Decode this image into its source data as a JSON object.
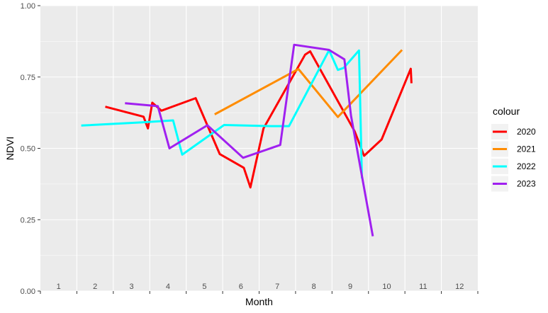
{
  "chart_data": {
    "type": "line",
    "xlabel": "Month",
    "ylabel": "NDVI",
    "ylim": [
      0,
      1
    ],
    "xlim": [
      0.5,
      12.5
    ],
    "x_ticks": [
      "1",
      "2",
      "3",
      "4",
      "5",
      "6",
      "7",
      "8",
      "9",
      "10",
      "11",
      "12"
    ],
    "y_ticks": [
      0.0,
      0.25,
      0.5,
      0.75,
      1.0
    ],
    "y_tick_labels": [
      "0.00",
      "0.25",
      "0.50",
      "0.75",
      "1.00"
    ],
    "grid": true,
    "legend": {
      "title": "colour",
      "position": "right"
    },
    "series": [
      {
        "name": "2020",
        "color": "#ff0000",
        "points": [
          [
            2.28,
            0.646
          ],
          [
            3.33,
            0.611
          ],
          [
            3.45,
            0.57
          ],
          [
            3.57,
            0.66
          ],
          [
            3.82,
            0.632
          ],
          [
            4.76,
            0.676
          ],
          [
            5.42,
            0.48
          ],
          [
            6.08,
            0.432
          ],
          [
            6.26,
            0.363
          ],
          [
            6.62,
            0.57
          ],
          [
            7.76,
            0.828
          ],
          [
            7.9,
            0.84
          ],
          [
            9.12,
            0.56
          ],
          [
            9.38,
            0.474
          ],
          [
            9.86,
            0.531
          ],
          [
            10.66,
            0.779
          ],
          [
            10.68,
            0.728
          ]
        ]
      },
      {
        "name": "2021",
        "color": "#ff8c00",
        "points": [
          [
            5.28,
            0.619
          ],
          [
            7.58,
            0.778
          ],
          [
            8.66,
            0.61
          ],
          [
            10.42,
            0.845
          ]
        ]
      },
      {
        "name": "2022",
        "color": "#00ffff",
        "points": [
          [
            1.62,
            0.58
          ],
          [
            3.3,
            0.591
          ],
          [
            4.14,
            0.598
          ],
          [
            4.39,
            0.478
          ],
          [
            5.54,
            0.582
          ],
          [
            6.84,
            0.578
          ],
          [
            7.32,
            0.578
          ],
          [
            8.42,
            0.844
          ],
          [
            8.66,
            0.775
          ],
          [
            8.82,
            0.782
          ],
          [
            9.24,
            0.843
          ],
          [
            9.32,
            0.395
          ]
        ]
      },
      {
        "name": "2023",
        "color": "#a020f0",
        "points": [
          [
            2.82,
            0.658
          ],
          [
            3.72,
            0.648
          ],
          [
            4.04,
            0.5
          ],
          [
            5.08,
            0.581
          ],
          [
            6.06,
            0.467
          ],
          [
            7.08,
            0.512
          ],
          [
            7.46,
            0.863
          ],
          [
            8.42,
            0.845
          ],
          [
            8.84,
            0.812
          ],
          [
            9.02,
            0.615
          ],
          [
            9.62,
            0.192
          ]
        ]
      }
    ]
  }
}
